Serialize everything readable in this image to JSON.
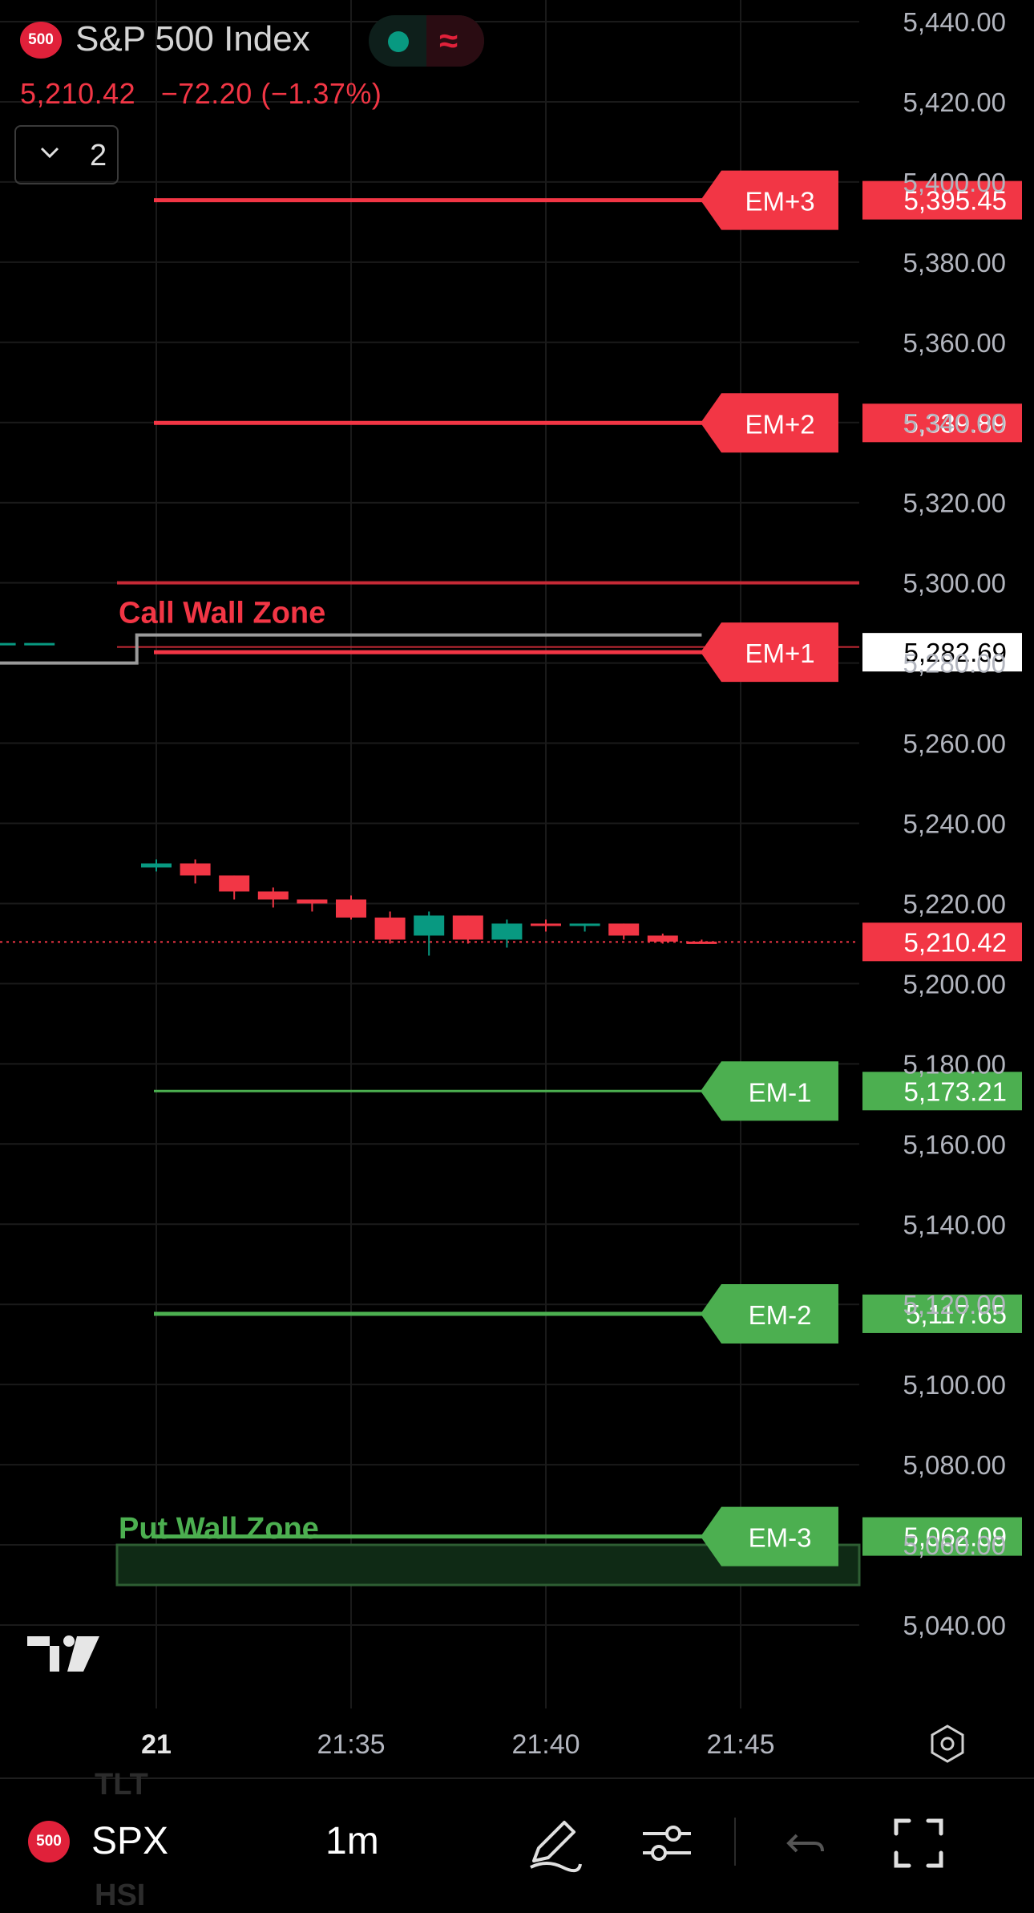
{
  "header": {
    "logo_badge": "500",
    "symbol_title": "S&P 500 Index",
    "last_price": "5,210.42",
    "change": "−72.20",
    "change_pct": "(−1.37%)",
    "indicator_count": "2"
  },
  "colors": {
    "red": "#f23645",
    "green": "#4caf50",
    "teal": "#089981",
    "grid": "#1a1a1a",
    "axis_text": "#b2b5be"
  },
  "chart_data": {
    "type": "candlestick",
    "y_axis": {
      "min": 5030,
      "max": 5445,
      "tick_labels": [
        "5,440.00",
        "5,420.00",
        "5,400.00",
        "5,380.00",
        "5,360.00",
        "5,340.00",
        "5,320.00",
        "5,300.00",
        "5,280.00",
        "5,260.00",
        "5,240.00",
        "5,220.00",
        "5,200.00",
        "5,180.00",
        "5,160.00",
        "5,140.00",
        "5,120.00",
        "5,100.00",
        "5,080.00",
        "5,060.00",
        "5,040.00"
      ],
      "tick_values": [
        5440,
        5420,
        5400,
        5380,
        5360,
        5340,
        5320,
        5300,
        5280,
        5260,
        5240,
        5220,
        5200,
        5180,
        5160,
        5140,
        5120,
        5100,
        5080,
        5060,
        5040
      ]
    },
    "x_axis": {
      "tick_labels": [
        "21",
        "21:35",
        "21:40",
        "21:45"
      ],
      "tick_minutes": [
        30,
        35,
        40,
        45
      ]
    },
    "grid": true,
    "levels": [
      {
        "name": "EM+3",
        "value": 5395.45,
        "label": "5,395.45",
        "color": "red"
      },
      {
        "name": "EM+2",
        "value": 5339.89,
        "label": "5,339.89",
        "color": "red"
      },
      {
        "name": "EM+1",
        "value": 5282.69,
        "label": "5,282.69",
        "color": "white"
      },
      {
        "name": "EM-1",
        "value": 5173.21,
        "label": "5,173.21",
        "color": "green"
      },
      {
        "name": "EM-2",
        "value": 5117.65,
        "label": "5,117.65",
        "color": "green"
      },
      {
        "name": "EM-3",
        "value": 5062.09,
        "label": "5,062.09",
        "color": "green"
      }
    ],
    "current_price": {
      "value": 5210.42,
      "label": "5,210.42"
    },
    "zones": [
      {
        "name": "Call Wall Zone",
        "from": 5284,
        "to": 5300,
        "color": "red"
      },
      {
        "name": "Put Wall Zone",
        "from": 5050,
        "to": 5060,
        "color": "green"
      }
    ],
    "previous_session_line": [
      {
        "minute": 24.0,
        "price": 5280.0
      },
      {
        "minute": 29.5,
        "price": 5280.0
      },
      {
        "minute": 29.5,
        "price": 5287.0
      },
      {
        "minute": 44.0,
        "price": 5287.0
      }
    ],
    "prev_candles": [
      {
        "minute": 24.0,
        "open": 5279,
        "high": 5281,
        "low": 5278,
        "close": 5278
      },
      {
        "minute": 25.0,
        "open": 5285,
        "high": 5286,
        "low": 5282,
        "close": 5288
      },
      {
        "minute": 26.0,
        "open": 5285,
        "high": 5285,
        "low": 5285,
        "close": 5285
      },
      {
        "minute": 27.0,
        "open": 5285,
        "high": 5285,
        "low": 5285,
        "close": 5285
      }
    ],
    "candles": [
      {
        "minute": 30,
        "open": 5229.0,
        "high": 5231.0,
        "low": 5228.0,
        "close": 5230.0
      },
      {
        "minute": 31,
        "open": 5230.0,
        "high": 5231.0,
        "low": 5225.0,
        "close": 5227.0
      },
      {
        "minute": 32,
        "open": 5227.0,
        "high": 5227.0,
        "low": 5221.0,
        "close": 5223.0
      },
      {
        "minute": 33,
        "open": 5223.0,
        "high": 5224.0,
        "low": 5219.0,
        "close": 5221.0
      },
      {
        "minute": 34,
        "open": 5221.0,
        "high": 5221.0,
        "low": 5218.0,
        "close": 5220.0
      },
      {
        "minute": 35,
        "open": 5221.0,
        "high": 5222.0,
        "low": 5216.0,
        "close": 5216.5
      },
      {
        "minute": 36,
        "open": 5216.5,
        "high": 5218.0,
        "low": 5210.0,
        "close": 5211.0
      },
      {
        "minute": 37,
        "open": 5212.0,
        "high": 5218.0,
        "low": 5207.0,
        "close": 5217.0
      },
      {
        "minute": 38,
        "open": 5217.0,
        "high": 5217.0,
        "low": 5210.0,
        "close": 5211.0
      },
      {
        "minute": 39,
        "open": 5211.0,
        "high": 5216.0,
        "low": 5209.0,
        "close": 5215.0
      },
      {
        "minute": 40,
        "open": 5215.0,
        "high": 5216.0,
        "low": 5213.0,
        "close": 5214.5
      },
      {
        "minute": 41,
        "open": 5214.5,
        "high": 5215.0,
        "low": 5213.0,
        "close": 5215.0
      },
      {
        "minute": 42,
        "open": 5215.0,
        "high": 5215.0,
        "low": 5211.0,
        "close": 5212.0
      },
      {
        "minute": 43,
        "open": 5212.0,
        "high": 5212.5,
        "low": 5210.0,
        "close": 5210.5
      },
      {
        "minute": 44,
        "open": 5210.5,
        "high": 5211.0,
        "low": 5210.0,
        "close": 5210.4
      }
    ]
  },
  "bottom_bar": {
    "logo_badge": "500",
    "symbol": "SPX",
    "interval": "1m"
  },
  "watermark": {
    "ghost_1": "TLT",
    "ghost_2": "HSI"
  },
  "icons": [
    "tradingview-logo-icon",
    "settings-hexagon-icon",
    "pen-icon",
    "sliders-icon",
    "undo-icon",
    "fullscreen-icon",
    "chevron-down-icon",
    "status-dot-icon",
    "wave-icon"
  ]
}
